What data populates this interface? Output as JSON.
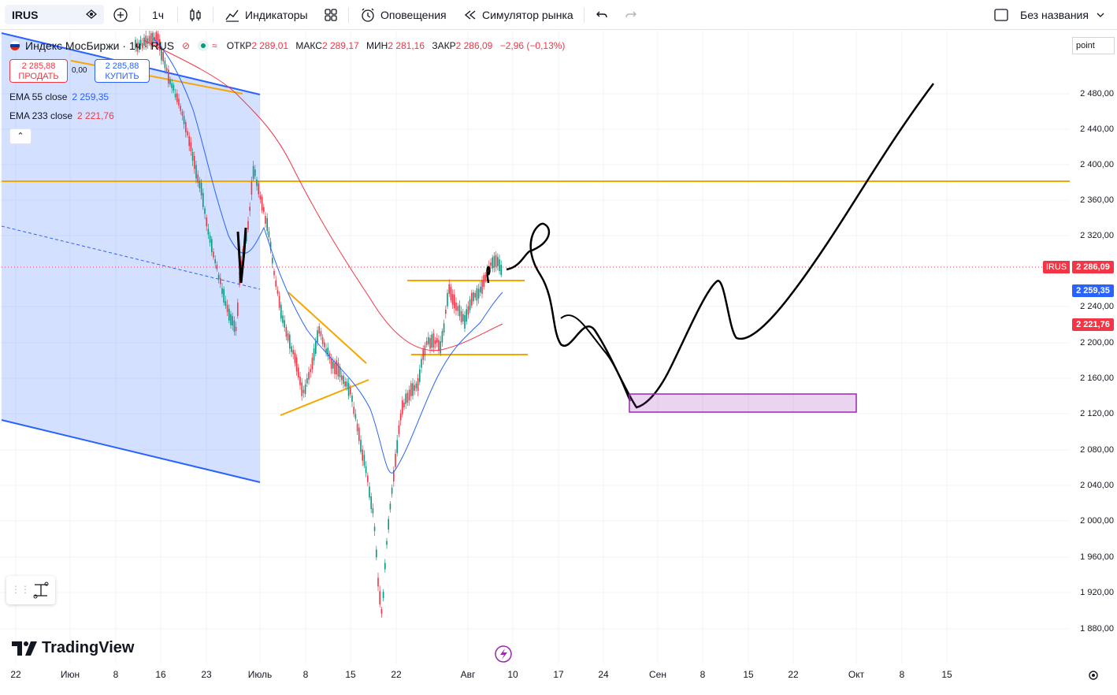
{
  "toolbar": {
    "symbol": "IRUS",
    "interval": "1ч",
    "indicators": "Индикаторы",
    "alerts": "Оповещения",
    "replay": "Симулятор рынка",
    "layout_name": "Без названия"
  },
  "legend": {
    "title": "Индекс МосБиржи · 1ч · RUS",
    "open_label": "ОТКР",
    "open": "2 289,01",
    "high_label": "МАКС",
    "high": "2 289,17",
    "low_label": "МИН",
    "low": "2 281,16",
    "close_label": "ЗАКР",
    "close": "2 286,09",
    "change": "−2,96 (−0,13%)",
    "sell_price": "2 285,88",
    "sell_label": "ПРОДАТЬ",
    "spread": "0,00",
    "buy_price": "2 285,88",
    "buy_label": "КУПИТЬ",
    "ema55_label": "EMA 55 close",
    "ema55_value": "2 259,35",
    "ema233_label": "EMA 233 close",
    "ema233_value": "2 221,76"
  },
  "price_scale": {
    "mode": "point",
    "ticks": [
      "2 480,00",
      "2 440,00",
      "2 400,00",
      "2 360,00",
      "2 320,00",
      "2 240,00",
      "2 200,00",
      "2 160,00",
      "2 120,00",
      "2 080,00",
      "2 040,00",
      "2 000,00",
      "1 960,00",
      "1 920,00",
      "1 880,00"
    ],
    "badges": {
      "symbol": "IRUS",
      "last": "2 286,09",
      "ema55": "2 259,35",
      "ema233": "2 221,76"
    }
  },
  "time_scale": [
    "22",
    "Июн",
    "8",
    "16",
    "23",
    "Июль",
    "8",
    "15",
    "22",
    "Авг",
    "10",
    "17",
    "24",
    "Сен",
    "8",
    "15",
    "22",
    "Окт",
    "8",
    "15"
  ],
  "branding": "TradingView",
  "colors": {
    "up": "#089981",
    "down": "#f23645",
    "ema55": "#2962ff",
    "ema233": "#f23645",
    "hline": "#f7a600",
    "rect": "#9c27b0",
    "channel": "#2962ff"
  }
}
